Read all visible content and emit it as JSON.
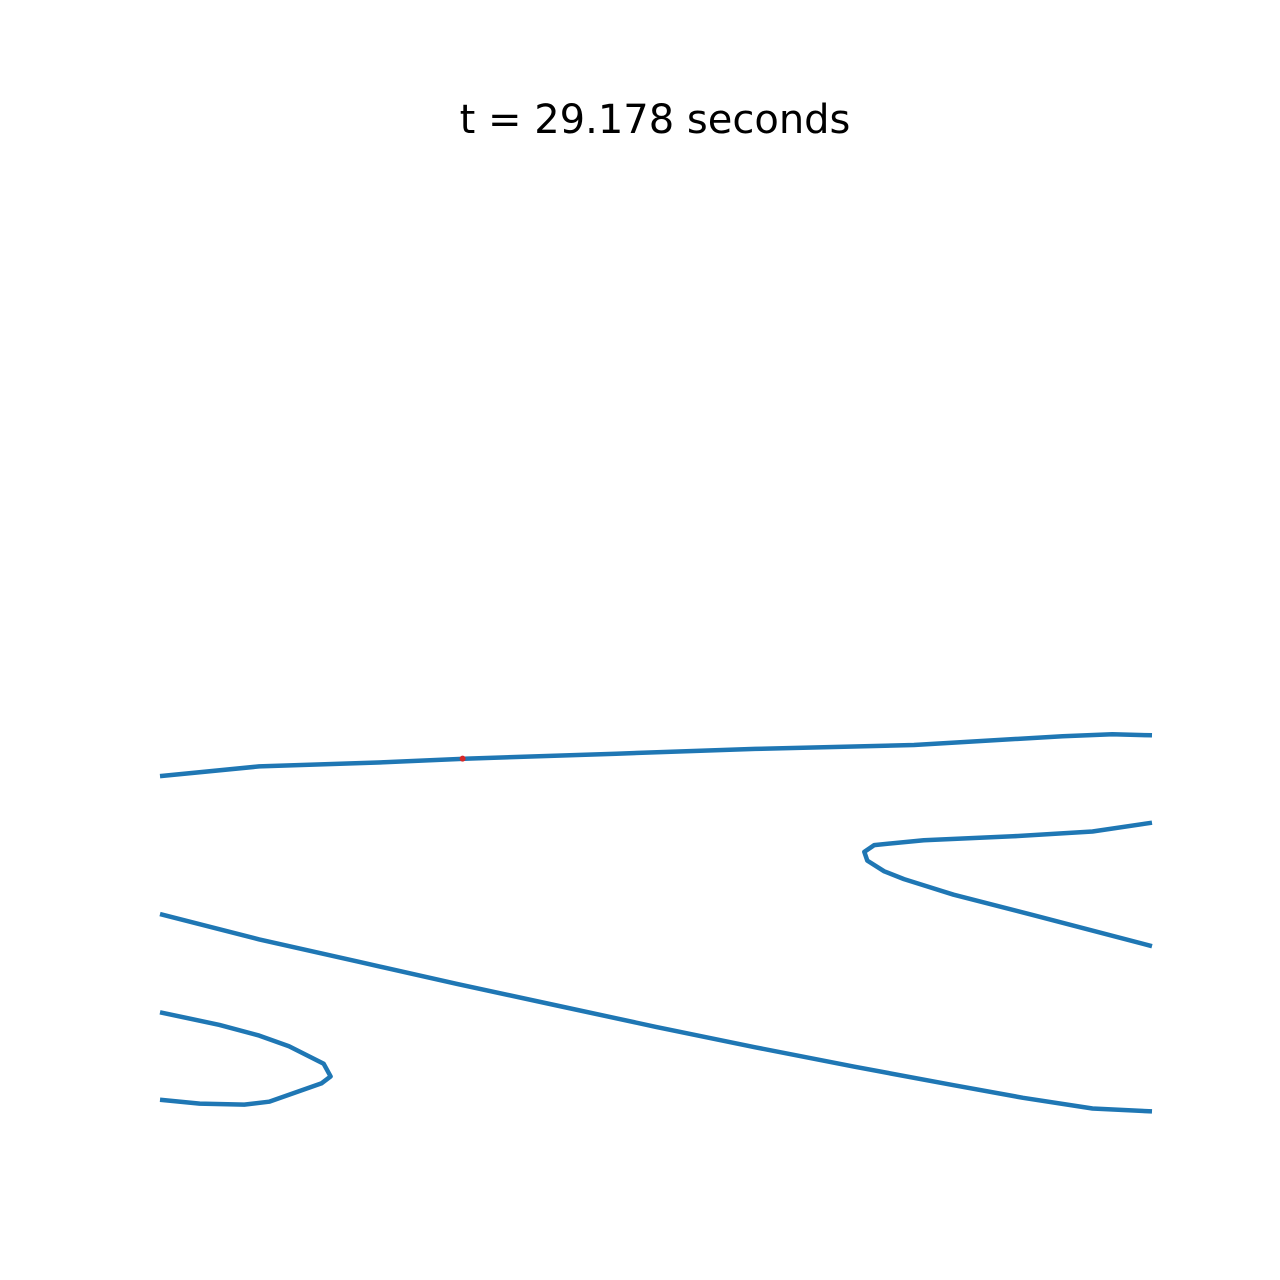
{
  "chart_data": {
    "type": "line",
    "title": "t = 29.178 seconds",
    "xlabel": "",
    "ylabel": "",
    "xlim": [
      0,
      100
    ],
    "ylim": [
      0,
      100
    ],
    "axes_visible": false,
    "grid": false,
    "series": [
      {
        "color": "#1f77b4",
        "x": [
          0,
          10,
          22,
          31,
          46,
          60,
          76,
          91,
          96,
          100
        ],
        "y": [
          36,
          37,
          37.4,
          37.8,
          38.3,
          38.8,
          39.2,
          40.1,
          40.3,
          40.2
        ]
      },
      {
        "color": "#1f77b4",
        "x": [
          100,
          94,
          86,
          77,
          72,
          71,
          71.3,
          73,
          75,
          80,
          88,
          100
        ],
        "y": [
          31.2,
          30.3,
          29.8,
          29.4,
          28.9,
          28.2,
          27.3,
          26.2,
          25.4,
          23.8,
          21.7,
          18.5
        ]
      },
      {
        "color": "#1f77b4",
        "x": [
          0,
          10,
          20,
          30,
          40,
          50,
          60,
          70,
          80,
          87,
          94,
          100
        ],
        "y": [
          21.8,
          19.2,
          16.9,
          14.6,
          12.4,
          10.2,
          8.1,
          6.1,
          4.2,
          2.9,
          1.8,
          1.5
        ]
      },
      {
        "color": "#1f77b4",
        "x": [
          0,
          6,
          10,
          13,
          16.5,
          17.2,
          16.3,
          11,
          8.5,
          4,
          0
        ],
        "y": [
          11.7,
          10.4,
          9.3,
          8.2,
          6.4,
          5.1,
          4.4,
          2.5,
          2.2,
          2.3,
          2.7
        ]
      }
    ],
    "markers": [
      {
        "color": "#d62728",
        "x": 30.5,
        "y": 37.8
      }
    ]
  }
}
